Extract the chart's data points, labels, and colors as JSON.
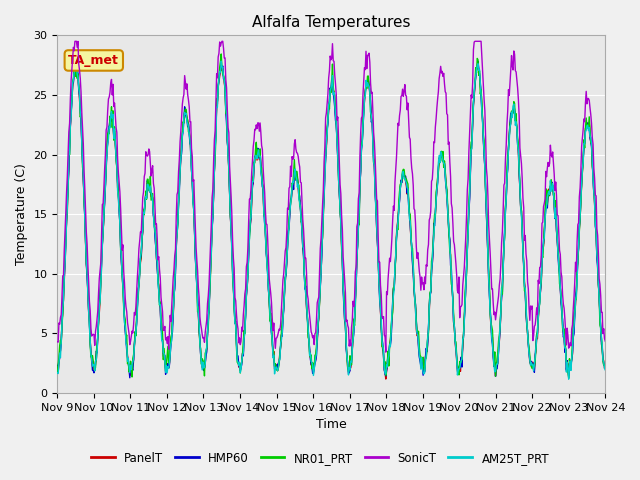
{
  "title": "Alfalfa Temperatures",
  "xlabel": "Time",
  "ylabel": "Temperature (C)",
  "ylim": [
    0,
    30
  ],
  "background_color": "#e8e8e8",
  "grid_color": "#ffffff",
  "fig_facecolor": "#f0f0f0",
  "series_order": [
    "PanelT",
    "HMP60",
    "NR01_PRT",
    "SonicT",
    "AM25T_PRT"
  ],
  "series": {
    "PanelT": {
      "color": "#cc0000",
      "lw": 1.0,
      "zorder": 3
    },
    "HMP60": {
      "color": "#0000cc",
      "lw": 1.0,
      "zorder": 3
    },
    "NR01_PRT": {
      "color": "#00cc00",
      "lw": 1.0,
      "zorder": 3
    },
    "SonicT": {
      "color": "#aa00cc",
      "lw": 1.0,
      "zorder": 4
    },
    "AM25T_PRT": {
      "color": "#00cccc",
      "lw": 1.0,
      "zorder": 3
    }
  },
  "xtick_labels": [
    "Nov 9",
    "Nov 10",
    "Nov 11",
    "Nov 12",
    "Nov 13",
    "Nov 14",
    "Nov 15",
    "Nov 16",
    "Nov 17",
    "Nov 18",
    "Nov 19",
    "Nov 20",
    "Nov 21",
    "Nov 22",
    "Nov 23",
    "Nov 24"
  ],
  "ytick_values": [
    0,
    5,
    10,
    15,
    20,
    25,
    30
  ],
  "annotation": {
    "text": "TA_met",
    "color": "#cc0000",
    "bg": "#f5f5a0",
    "edge": "#cc8800"
  },
  "legend_entries": [
    "PanelT",
    "HMP60",
    "NR01_PRT",
    "SonicT",
    "AM25T_PRT"
  ],
  "legend_colors": [
    "#cc0000",
    "#0000cc",
    "#00cc00",
    "#aa00cc",
    "#00cccc"
  ],
  "n_days": 15,
  "pts_per_day": 48
}
